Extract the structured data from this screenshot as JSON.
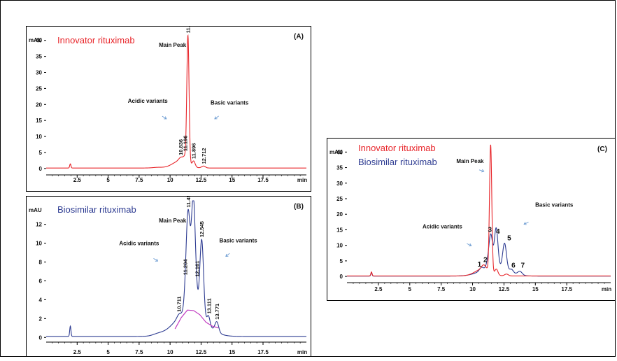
{
  "colors": {
    "innovator": "#e8262b",
    "biosimilar": "#2e3c92",
    "baseline_fit": "#c03ac0"
  },
  "chart_data": [
    {
      "id": "A",
      "type": "line",
      "panel_label": "(A)",
      "title": "Innovator rituximab",
      "ylabel": "mAU",
      "xlabel": "min",
      "xlim": [
        0,
        21
      ],
      "ylim": [
        -2,
        43
      ],
      "x_ticks": [
        2.5,
        5,
        7.5,
        10,
        12.5,
        15,
        17.5
      ],
      "x_tick_labels": [
        "2.5",
        "5",
        "7.5",
        "10",
        "12.5",
        "15",
        "17.5"
      ],
      "y_ticks": [
        0,
        5,
        10,
        15,
        20,
        25,
        30,
        35,
        40
      ],
      "y_tick_labels": [
        "0",
        "5",
        "10",
        "15",
        "20",
        "25",
        "30",
        "35",
        "40"
      ],
      "series": [
        {
          "color": "#e8262b",
          "baseline": 0.15,
          "peaks": [
            [
              1.95,
              1.3,
              0.05
            ],
            [
              9.0,
              0.2,
              0.4
            ],
            [
              10.9,
              1.2,
              0.18
            ],
            [
              11.2,
              1.5,
              0.12
            ],
            [
              11.44,
              40,
              0.09
            ],
            [
              11.9,
              1.8,
              0.12
            ],
            [
              12.7,
              0.6,
              0.15
            ],
            [
              10.8,
              2.2,
              0.6
            ]
          ]
        }
      ],
      "peak_labels": [
        {
          "x": 10.836,
          "text": "10.836"
        },
        {
          "x": 11.196,
          "text": "11.196"
        },
        {
          "x": 11.439,
          "text": "11.439"
        },
        {
          "x": 11.896,
          "text": "11.896"
        },
        {
          "x": 12.712,
          "text": "12.712"
        }
      ],
      "annotations": [
        {
          "text": "Main Peak",
          "x": 10.2,
          "y": 38,
          "arrow": []
        },
        {
          "text": "Acidic variants",
          "x": 8.2,
          "y": 20.5,
          "arrow": [
            9.7,
            15.5
          ]
        },
        {
          "text": "Basic variants",
          "x": 14.8,
          "y": 20,
          "arrow": [
            13.6,
            15.5
          ]
        }
      ]
    },
    {
      "id": "B",
      "type": "line",
      "panel_label": "(B)",
      "title": "Biosimilar rituximab",
      "ylabel": "mAU",
      "xlabel": "min",
      "xlim": [
        0,
        21
      ],
      "ylim": [
        -0.5,
        14.5
      ],
      "x_ticks": [
        2.5,
        5,
        7.5,
        10,
        12.5,
        15,
        17.5
      ],
      "x_tick_labels": [
        "2.5",
        "5",
        "7.5",
        "10",
        "12.5",
        "15",
        "17.5"
      ],
      "y_ticks": [
        0,
        2,
        4,
        6,
        8,
        10,
        12
      ],
      "y_tick_labels": [
        "0",
        "2",
        "4",
        "6",
        "8",
        "10",
        "12"
      ],
      "series": [
        {
          "color": "#2e3c92",
          "baseline": 0.1,
          "peaks": [
            [
              1.95,
              1.1,
              0.05
            ],
            [
              9.0,
              0.15,
              0.4
            ],
            [
              10.7,
              0.3,
              0.15
            ],
            [
              11.2,
              0.5,
              0.12
            ],
            [
              11.45,
              10.3,
              0.16
            ],
            [
              11.88,
              11.9,
              0.16
            ],
            [
              12.18,
              0.8,
              0.12
            ],
            [
              12.55,
              8.3,
              0.15
            ],
            [
              13.1,
              1.0,
              0.12
            ],
            [
              13.77,
              1.1,
              0.15
            ],
            [
              11.6,
              2.8,
              1.15
            ]
          ]
        }
      ],
      "fit_line": {
        "color": "#c03ac0",
        "points": [
          [
            10.4,
            0.9
          ],
          [
            10.9,
            2.1
          ],
          [
            11.4,
            2.9
          ],
          [
            11.9,
            2.85
          ],
          [
            12.4,
            2.4
          ],
          [
            12.9,
            1.6
          ],
          [
            13.4,
            1.2
          ],
          [
            13.9,
            1.0
          ]
        ]
      },
      "peak_labels": [
        {
          "x": 10.711,
          "text": "10.711"
        },
        {
          "x": 11.204,
          "text": "11.204"
        },
        {
          "x": 11.452,
          "text": "11.452"
        },
        {
          "x": 11.88,
          "text": "11.880"
        },
        {
          "x": 12.161,
          "text": "12.161"
        },
        {
          "x": 12.545,
          "text": "12.545"
        },
        {
          "x": 13.111,
          "text": "13.111"
        },
        {
          "x": 13.771,
          "text": "13.771"
        }
      ],
      "annotations": [
        {
          "text": "Main Peak",
          "x": 10.2,
          "y": 12.2,
          "arrow": []
        },
        {
          "text": "Acidic variants",
          "x": 7.5,
          "y": 9.8,
          "arrow": [
            9.0,
            8.1
          ]
        },
        {
          "text": "Basic variants",
          "x": 15.5,
          "y": 10.1,
          "arrow": [
            14.5,
            8.6
          ]
        }
      ]
    },
    {
      "id": "C",
      "type": "line",
      "panel_label": "(C)",
      "title": "Innovator rituximab",
      "subtitle": "Biosimilar rituximab",
      "ylabel": "mAU",
      "xlabel": "min",
      "xlim": [
        0,
        21
      ],
      "ylim": [
        -2,
        43
      ],
      "x_ticks": [
        2.5,
        5,
        7.5,
        10,
        12.5,
        15,
        17.5
      ],
      "x_tick_labels": [
        "2.5",
        "5",
        "7.5",
        "10",
        "12.5",
        "15",
        "17.5"
      ],
      "y_ticks": [
        0,
        5,
        10,
        15,
        20,
        25,
        30,
        35,
        40
      ],
      "y_tick_labels": [
        "0",
        "5",
        "10",
        "15",
        "20",
        "25",
        "30",
        "35",
        "40"
      ],
      "series": [
        {
          "color": "#2e3c92",
          "baseline": 0.1,
          "peaks": [
            [
              1.95,
              1.1,
              0.05
            ],
            [
              10.7,
              1.0,
              0.15
            ],
            [
              11.2,
              1.6,
              0.12
            ],
            [
              11.45,
              10.4,
              0.14
            ],
            [
              11.88,
              12.5,
              0.14
            ],
            [
              12.55,
              8.5,
              0.15
            ],
            [
              13.1,
              1.1,
              0.15
            ],
            [
              13.77,
              1.2,
              0.18
            ],
            [
              11.7,
              3.0,
              1.0
            ]
          ]
        },
        {
          "color": "#e8262b",
          "baseline": 0.15,
          "peaks": [
            [
              1.95,
              1.3,
              0.05
            ],
            [
              10.9,
              1.4,
              0.18
            ],
            [
              11.44,
              41,
              0.09
            ],
            [
              11.9,
              1.8,
              0.12
            ],
            [
              12.7,
              0.6,
              0.15
            ],
            [
              10.8,
              2.2,
              0.6
            ]
          ]
        }
      ],
      "peak_numbers": [
        {
          "x": 10.55,
          "y": 3.2,
          "text": "1"
        },
        {
          "x": 11.02,
          "y": 4.6,
          "text": "2"
        },
        {
          "x": 11.38,
          "y": 14.3,
          "text": "3"
        },
        {
          "x": 12.02,
          "y": 13.8,
          "text": "4"
        },
        {
          "x": 12.92,
          "y": 11.6,
          "text": "5"
        },
        {
          "x": 13.25,
          "y": 2.8,
          "text": "6"
        },
        {
          "x": 14.0,
          "y": 2.8,
          "text": "7"
        }
      ],
      "annotations": [
        {
          "text": "Main Peak",
          "x": 9.8,
          "y": 36.5,
          "arrow": [
            10.9,
            33.8
          ]
        },
        {
          "text": "Acidic variants",
          "x": 7.6,
          "y": 15.4,
          "arrow": [
            9.9,
            9.9
          ]
        },
        {
          "text": "Basic variants",
          "x": 16.5,
          "y": 22.4,
          "arrow": [
            14.1,
            16.8
          ]
        }
      ]
    }
  ]
}
